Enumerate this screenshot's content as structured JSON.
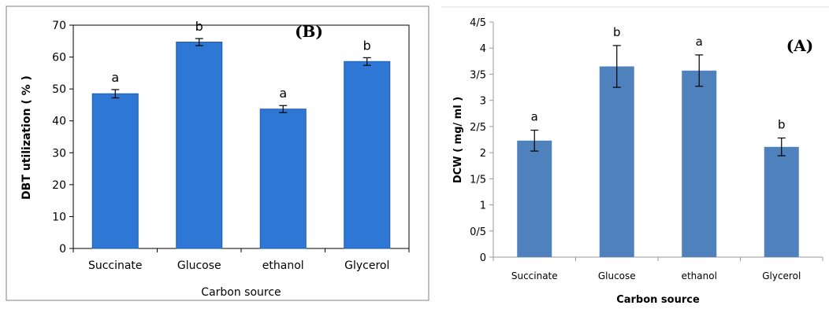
{
  "chart_data": [
    {
      "type": "bar",
      "panel_label": "(B)",
      "categories": [
        "Succinate",
        "Glucose",
        "ethanol",
        "Glycerol"
      ],
      "values": [
        48.5,
        64.7,
        43.7,
        58.6
      ],
      "errors": [
        1.3,
        1.1,
        1.1,
        1.2
      ],
      "annotations": [
        "a",
        "b",
        "a",
        "b"
      ],
      "xlabel": "Carbon source",
      "ylabel": "DBT utilization ( % )",
      "ylim": [
        0,
        70
      ],
      "yticks": [
        "0",
        "10",
        "20",
        "30",
        "40",
        "50",
        "60",
        "70"
      ],
      "colors": {
        "bar": "#2f77d4",
        "bar_edge": "#1f5ba8"
      },
      "grid": false,
      "frame": "box"
    },
    {
      "type": "bar",
      "panel_label": "(A)",
      "categories": [
        "Succinate",
        "Glucose",
        "ethanol",
        "Glycerol"
      ],
      "values": [
        2.23,
        3.65,
        3.57,
        2.11
      ],
      "errors": [
        0.2,
        0.4,
        0.3,
        0.17
      ],
      "annotations": [
        "a",
        "b",
        "a",
        "b"
      ],
      "xlabel": "Carbon source",
      "ylabel": "DCW ( mg/ ml )",
      "ylim": [
        0,
        4.5
      ],
      "yticks": [
        "0",
        "0/5",
        "1",
        "1/5",
        "2",
        "2/5",
        "3",
        "3/5",
        "4",
        "4/5"
      ],
      "colors": {
        "bar": "#4f81bd"
      },
      "grid": false,
      "frame": "none"
    }
  ]
}
